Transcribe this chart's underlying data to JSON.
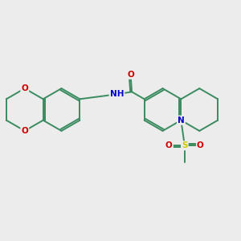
{
  "bg_color": "#ececec",
  "bond_color": "#3a8b60",
  "bond_lw": 1.4,
  "dbo": 0.06,
  "atom_colors": {
    "O": "#cc0000",
    "N": "#0000cc",
    "S": "#cccc00"
  },
  "fs": 7.5,
  "figsize": [
    3.0,
    3.0
  ],
  "dpi": 100,
  "xlim": [
    0,
    10
  ],
  "ylim": [
    0,
    10
  ]
}
